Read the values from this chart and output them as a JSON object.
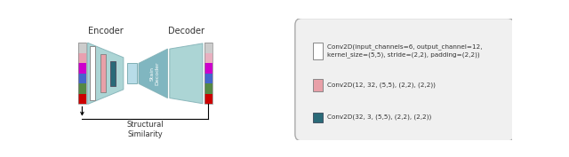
{
  "encoder_label": "Encoder",
  "decoder_label": "Decoder",
  "stain_decoder_label": "Stain\nDecoder",
  "structural_similarity_label": "Structural\nSimilarity",
  "input_bar_colors": [
    "#cccccc",
    "#e8a0b0",
    "#cc00cc",
    "#4466cc",
    "#558844",
    "#cc0000"
  ],
  "output_bar_colors": [
    "#cccccc",
    "#e8b0c0",
    "#cc00cc",
    "#4466cc",
    "#558844",
    "#cc0000"
  ],
  "funnel_color": "#9ecece",
  "funnel_edge_color": "#80b0b5",
  "stain_decoder_color": "#6aaab5",
  "latent_color": "#b8dce8",
  "latent_edge_color": "#80b0b5",
  "conv_rect1_color": "#ffffff",
  "conv_rect2_color": "#e8a0a8",
  "conv_rect3_color": "#2a6a78",
  "legend_rect1_color": "#ffffff",
  "legend_rect2_color": "#e8a0a8",
  "legend_rect3_color": "#2a6a78",
  "legend_labels": [
    "Conv2D(input_channels=6, output_channel=12,\nkernel_size=(5,5), stride=(2,2), padding=(2,2))",
    "Conv2D(12, 32, (5,5), (2,2), (2,2))",
    "Conv2D(32, 3, (5,5), (2,2), (2,2))"
  ],
  "legend_box_color": "#f0f0f0",
  "legend_edge_color": "#aaaaaa"
}
